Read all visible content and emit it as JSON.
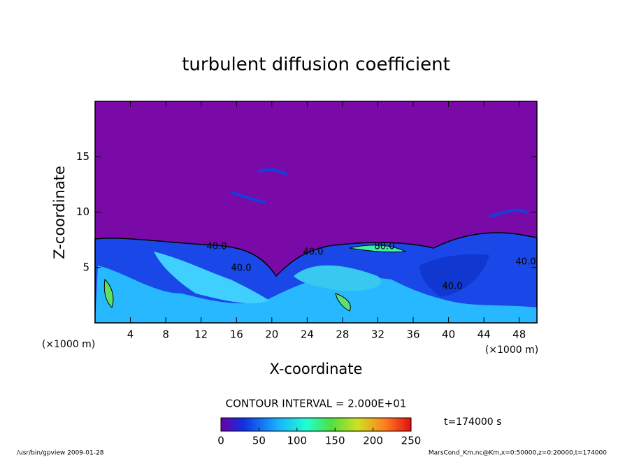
{
  "chart_data": {
    "type": "contour",
    "title": "turbulent diffusion coefficient",
    "x_label": "X-coordinate",
    "y_label": "Z-coordinate",
    "x_unit": "(×1000 m)",
    "y_unit": "(×1000 m)",
    "xlim": [
      0,
      50
    ],
    "xticks": [
      4,
      8,
      12,
      16,
      20,
      24,
      28,
      32,
      36,
      40,
      44,
      48
    ],
    "ylim": [
      0,
      20
    ],
    "yticks": [
      5,
      10,
      15
    ],
    "contour_interval": "CONTOUR INTERVAL = 2.000E+01",
    "contour_labels": [
      "40.0",
      "40.0",
      "40.0",
      "80.0",
      "40.0",
      "40.0"
    ],
    "colorbar_lim": [
      0,
      250
    ],
    "colorbar_ticks": [
      0,
      50,
      100,
      150,
      200,
      250
    ],
    "time_label": "t=174000 s",
    "footer_left": "/usr/bin/gpview  2009-01-28",
    "footer_right": "MarsCond_Km.nc@Km,x=0:50000,z=0:20000,t=174000"
  }
}
